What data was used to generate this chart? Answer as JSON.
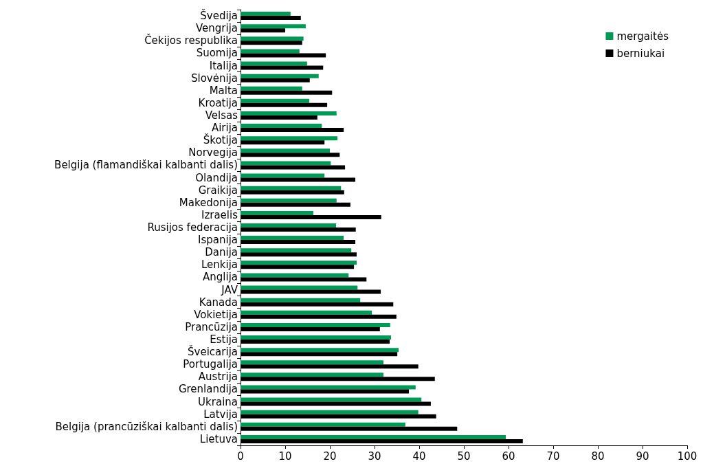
{
  "chart_data": {
    "type": "bar",
    "orientation": "horizontal",
    "categories": [
      "Švedija",
      "Vengrija",
      "Čekijos respublika",
      "Suomija",
      "Italija",
      "Slovėnija",
      "Malta",
      "Kroatija",
      "Velsas",
      "Airija",
      "Škotija",
      "Norvegija",
      "Belgija (flamandiškai kalbanti dalis)",
      "Olandija",
      "Graikija",
      "Makedonija",
      "Izraelis",
      "Rusijos federacija",
      "Ispanija",
      "Danija",
      "Lenkija",
      "Anglija",
      "JAV",
      "Kanada",
      "Vokietija",
      "Prancūzija",
      "Estija",
      "Šveicarija",
      "Portugalija",
      "Austrija",
      "Grenlandija",
      "Ukraina",
      "Latvija",
      "Belgija (prancūziškai kalbanti dalis)",
      "Lietuva"
    ],
    "series": [
      {
        "name": "mergaitės",
        "color": "#009a57",
        "values": [
          11.2,
          14.6,
          14.1,
          13.2,
          14.9,
          17.5,
          13.8,
          15.4,
          21.5,
          18.2,
          21.7,
          20.0,
          20.2,
          18.8,
          22.5,
          21.5,
          16.3,
          21.4,
          23.1,
          24.8,
          26.0,
          24.2,
          26.2,
          26.8,
          29.4,
          33.5,
          33.7,
          35.4,
          32.0,
          32.0,
          39.2,
          40.5,
          39.8,
          36.9,
          59.4
        ]
      },
      {
        "name": "berniukai",
        "color": "#000000",
        "values": [
          13.5,
          10.0,
          13.8,
          19.1,
          18.5,
          15.5,
          20.5,
          19.4,
          17.2,
          23.1,
          18.8,
          22.2,
          23.4,
          25.7,
          23.2,
          24.6,
          31.5,
          25.8,
          25.7,
          26.0,
          25.4,
          28.2,
          31.4,
          34.2,
          34.9,
          31.2,
          33.4,
          35.1,
          39.8,
          43.5,
          37.7,
          42.6,
          43.8,
          48.5,
          63.2
        ]
      }
    ],
    "xlim": [
      0,
      100
    ],
    "xticks": [
      0,
      10,
      20,
      30,
      40,
      50,
      60,
      70,
      80,
      90,
      100
    ],
    "grid": false,
    "legend": "top right"
  }
}
